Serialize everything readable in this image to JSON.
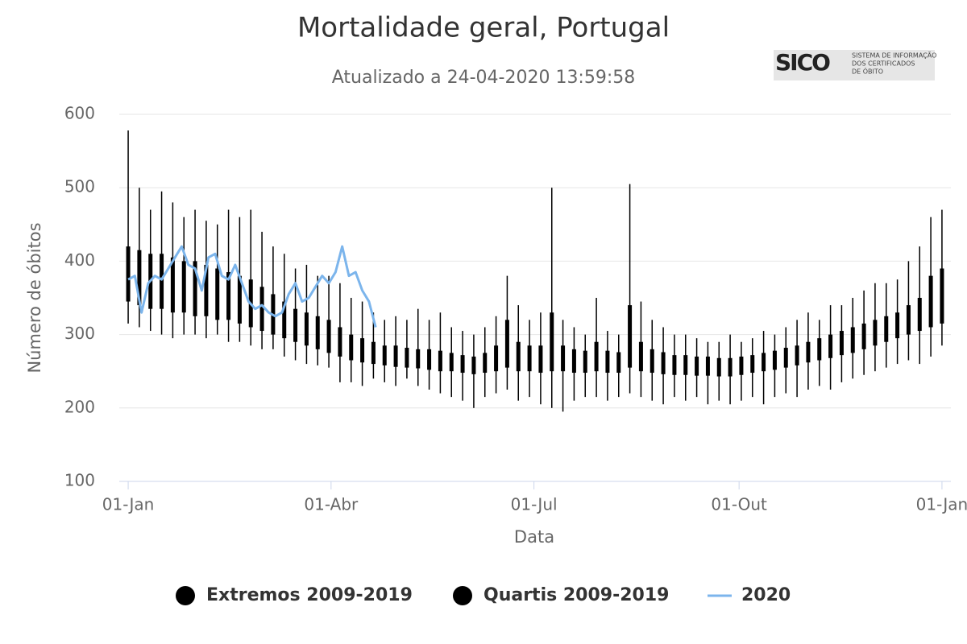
{
  "chart_data": {
    "type": "range-line",
    "title": "Mortalidade geral, Portugal",
    "subtitle": "Atualizado a 24-04-2020 13:59:58",
    "logo": {
      "name": "SICO",
      "lines": [
        "SISTEMA DE INFORMAÇÃO",
        "DOS CERTIFICADOS",
        "DE ÓBITO"
      ]
    },
    "x_label": "Data",
    "y_label": "Número de óbitos",
    "xlim": [
      -3,
      370
    ],
    "xticks": [
      {
        "value": 1,
        "label": "01-Jan"
      },
      {
        "value": 92,
        "label": "01-Abr"
      },
      {
        "value": 183,
        "label": "01-Jul"
      },
      {
        "value": 275,
        "label": "01-Out"
      },
      {
        "value": 366,
        "label": "01-Jan"
      }
    ],
    "ylim": [
      100,
      600
    ],
    "yticks": [
      100,
      200,
      300,
      400,
      500,
      600
    ],
    "grid": true,
    "x": [
      1,
      6,
      11,
      16,
      21,
      26,
      31,
      36,
      41,
      46,
      51,
      56,
      61,
      66,
      71,
      76,
      81,
      86,
      91,
      96,
      101,
      106,
      111,
      116,
      121,
      126,
      131,
      136,
      141,
      146,
      151,
      156,
      161,
      166,
      171,
      176,
      181,
      186,
      191,
      196,
      201,
      206,
      211,
      216,
      221,
      226,
      231,
      236,
      241,
      246,
      251,
      256,
      261,
      266,
      271,
      276,
      281,
      286,
      291,
      296,
      301,
      306,
      311,
      316,
      321,
      326,
      331,
      336,
      341,
      346,
      351,
      356,
      361,
      366
    ],
    "series": [
      {
        "name": "Extremos 2009-2019",
        "type": "range",
        "color": "#000000",
        "low": [
          315,
          310,
          305,
          300,
          295,
          300,
          300,
          295,
          300,
          290,
          290,
          285,
          280,
          280,
          270,
          265,
          260,
          258,
          255,
          235,
          235,
          230,
          240,
          235,
          230,
          240,
          230,
          225,
          220,
          215,
          210,
          200,
          215,
          220,
          225,
          210,
          215,
          205,
          200,
          195,
          210,
          215,
          215,
          210,
          215,
          220,
          215,
          210,
          205,
          215,
          210,
          215,
          205,
          210,
          205,
          210,
          215,
          205,
          215,
          220,
          215,
          225,
          230,
          225,
          235,
          240,
          245,
          250,
          255,
          260,
          265,
          260,
          270,
          285
        ],
        "high": [
          578,
          500,
          470,
          495,
          480,
          460,
          470,
          455,
          450,
          470,
          460,
          470,
          440,
          420,
          410,
          390,
          395,
          380,
          380,
          370,
          350,
          345,
          330,
          320,
          325,
          320,
          335,
          320,
          330,
          310,
          305,
          300,
          310,
          325,
          380,
          340,
          320,
          330,
          500,
          320,
          310,
          300,
          350,
          305,
          300,
          505,
          345,
          320,
          310,
          300,
          300,
          295,
          290,
          290,
          300,
          290,
          295,
          305,
          300,
          310,
          320,
          330,
          320,
          340,
          340,
          350,
          360,
          370,
          370,
          375,
          400,
          420,
          460,
          470
        ]
      },
      {
        "name": "Quartis 2009-2019",
        "type": "range",
        "color": "#000000",
        "low": [
          345,
          340,
          335,
          335,
          330,
          330,
          325,
          325,
          320,
          320,
          315,
          310,
          305,
          300,
          295,
          290,
          285,
          280,
          275,
          270,
          265,
          262,
          260,
          258,
          256,
          255,
          254,
          252,
          250,
          250,
          248,
          246,
          248,
          250,
          255,
          250,
          250,
          248,
          250,
          250,
          248,
          248,
          250,
          248,
          248,
          255,
          250,
          248,
          246,
          245,
          245,
          244,
          244,
          243,
          243,
          245,
          248,
          250,
          252,
          255,
          258,
          262,
          265,
          268,
          272,
          275,
          280,
          285,
          290,
          295,
          300,
          305,
          310,
          315
        ],
        "high": [
          420,
          415,
          410,
          410,
          405,
          400,
          400,
          395,
          390,
          385,
          380,
          375,
          365,
          355,
          345,
          335,
          330,
          325,
          320,
          310,
          300,
          295,
          290,
          285,
          285,
          282,
          280,
          280,
          278,
          275,
          272,
          270,
          275,
          285,
          320,
          290,
          285,
          285,
          330,
          285,
          280,
          278,
          290,
          278,
          276,
          340,
          290,
          280,
          276,
          272,
          272,
          270,
          270,
          268,
          268,
          270,
          272,
          275,
          278,
          282,
          285,
          290,
          295,
          300,
          305,
          310,
          315,
          320,
          325,
          330,
          340,
          350,
          380,
          390
        ]
      },
      {
        "name": "2020",
        "type": "line",
        "color": "#7cb5ec",
        "x": [
          1,
          4,
          7,
          10,
          13,
          16,
          19,
          22,
          25,
          28,
          31,
          34,
          37,
          40,
          43,
          46,
          49,
          52,
          55,
          58,
          61,
          64,
          67,
          70,
          73,
          76,
          79,
          82,
          85,
          88,
          91,
          94,
          97,
          100,
          103,
          106,
          109,
          112
        ],
        "values": [
          375,
          380,
          330,
          370,
          380,
          375,
          390,
          405,
          420,
          395,
          390,
          360,
          405,
          410,
          380,
          375,
          395,
          370,
          345,
          335,
          340,
          330,
          325,
          330,
          355,
          370,
          345,
          350,
          365,
          380,
          370,
          385,
          420,
          380,
          385,
          360,
          345,
          310
        ]
      }
    ]
  }
}
